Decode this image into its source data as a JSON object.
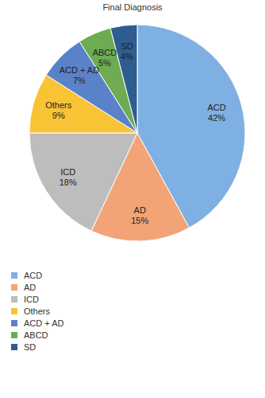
{
  "chart_data": {
    "type": "pie",
    "title": "Final Diagnosis",
    "categories": [
      "ACD",
      "AD",
      "ICD",
      "Others",
      "ACD + AD",
      "ABCD",
      "SD"
    ],
    "values": [
      42,
      15,
      18,
      9,
      7,
      5,
      4
    ],
    "value_labels": [
      "42%",
      "15%",
      "18%",
      "9%",
      "7%",
      "5%",
      "4%"
    ],
    "colors": [
      "#7fb0e3",
      "#f2a477",
      "#bdbdbd",
      "#f8c436",
      "#5a82c8",
      "#6eab52",
      "#2f5d8f"
    ],
    "data_labels": true,
    "legend": "bottom left"
  }
}
